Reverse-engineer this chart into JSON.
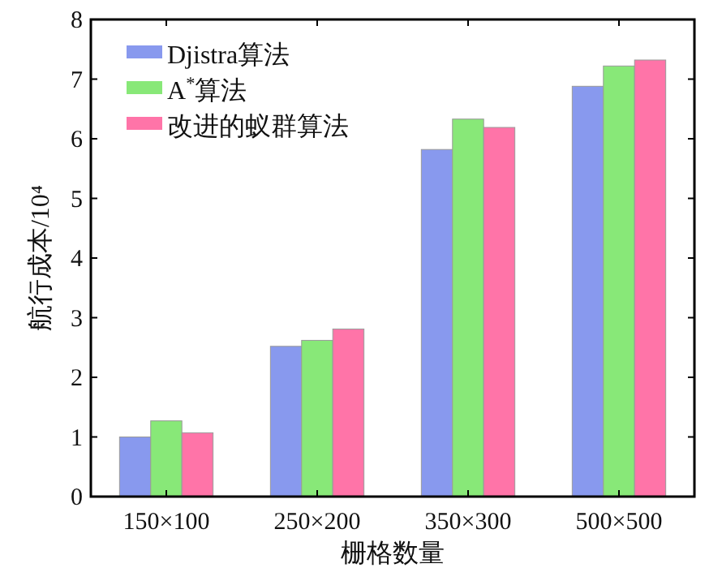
{
  "chart_data": {
    "type": "bar",
    "xlabel": "栅格数量",
    "ylabel": "航行成本/10⁴",
    "categories": [
      "150×100",
      "250×200",
      "350×300",
      "500×500"
    ],
    "series": [
      {
        "name": "Djistra算法",
        "color": "#8899ee",
        "values": [
          1.0,
          2.52,
          5.82,
          6.88
        ]
      },
      {
        "name": "A$^{*}$算法",
        "color": "#88e878",
        "values": [
          1.27,
          2.62,
          6.33,
          7.22
        ]
      },
      {
        "name": "改进的蚁群算法",
        "color": "#ff74a8",
        "values": [
          1.07,
          2.81,
          6.19,
          7.32
        ]
      }
    ],
    "ylim": [
      0,
      8
    ],
    "yticks": [
      0,
      1,
      2,
      3,
      4,
      5,
      6,
      7,
      8
    ],
    "grid": false,
    "legend": "top left"
  }
}
